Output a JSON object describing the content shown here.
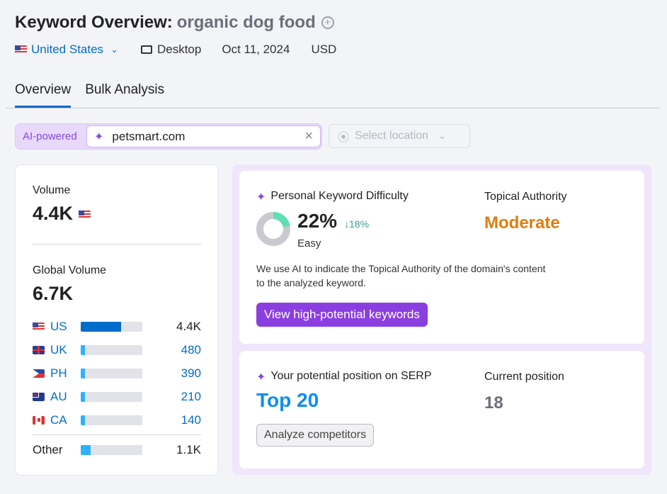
{
  "header": {
    "title": "Keyword Overview:",
    "keyword": "organic dog food",
    "add_icon": "plus-circle-icon"
  },
  "meta": {
    "country": "United States",
    "device": "Desktop",
    "date": "Oct 11, 2024",
    "currency": "USD"
  },
  "tabs": [
    {
      "label": "Overview",
      "active": true
    },
    {
      "label": "Bulk Analysis",
      "active": false
    }
  ],
  "search": {
    "ai_label": "AI-powered",
    "domain": "petsmart.com",
    "location_placeholder": "Select location"
  },
  "volume": {
    "label": "Volume",
    "value": "4.4K",
    "global_label": "Global Volume",
    "global_value": "6.7K",
    "countries": [
      {
        "code": "US",
        "value": "4.4K",
        "fill": 0.65
      },
      {
        "code": "UK",
        "value": "480",
        "fill": 0.07
      },
      {
        "code": "PH",
        "value": "390",
        "fill": 0.06
      },
      {
        "code": "AU",
        "value": "210",
        "fill": 0.04
      },
      {
        "code": "CA",
        "value": "140",
        "fill": 0.04
      }
    ],
    "other": {
      "label": "Other",
      "value": "1.1K",
      "fill": 0.16
    }
  },
  "pkd": {
    "title": "Personal Keyword Difficulty",
    "value": "22%",
    "percent": 22,
    "change": "↓18%",
    "level": "Easy",
    "authority_label": "Topical Authority",
    "authority_value": "Moderate",
    "description_1": "We use AI to indicate the Topical Authority of the domain's content",
    "description_2": "to the analyzed keyword.",
    "button": "View high-potential keywords"
  },
  "serp": {
    "title": "Your potential position on SERP",
    "value": "Top 20",
    "current_label": "Current position",
    "current_value": "18",
    "button": "Analyze competitors"
  },
  "colors": {
    "accent": "#006dca",
    "purple": "#8b3ee0",
    "orange": "#e07c0b",
    "green": "#5ee0b0"
  }
}
